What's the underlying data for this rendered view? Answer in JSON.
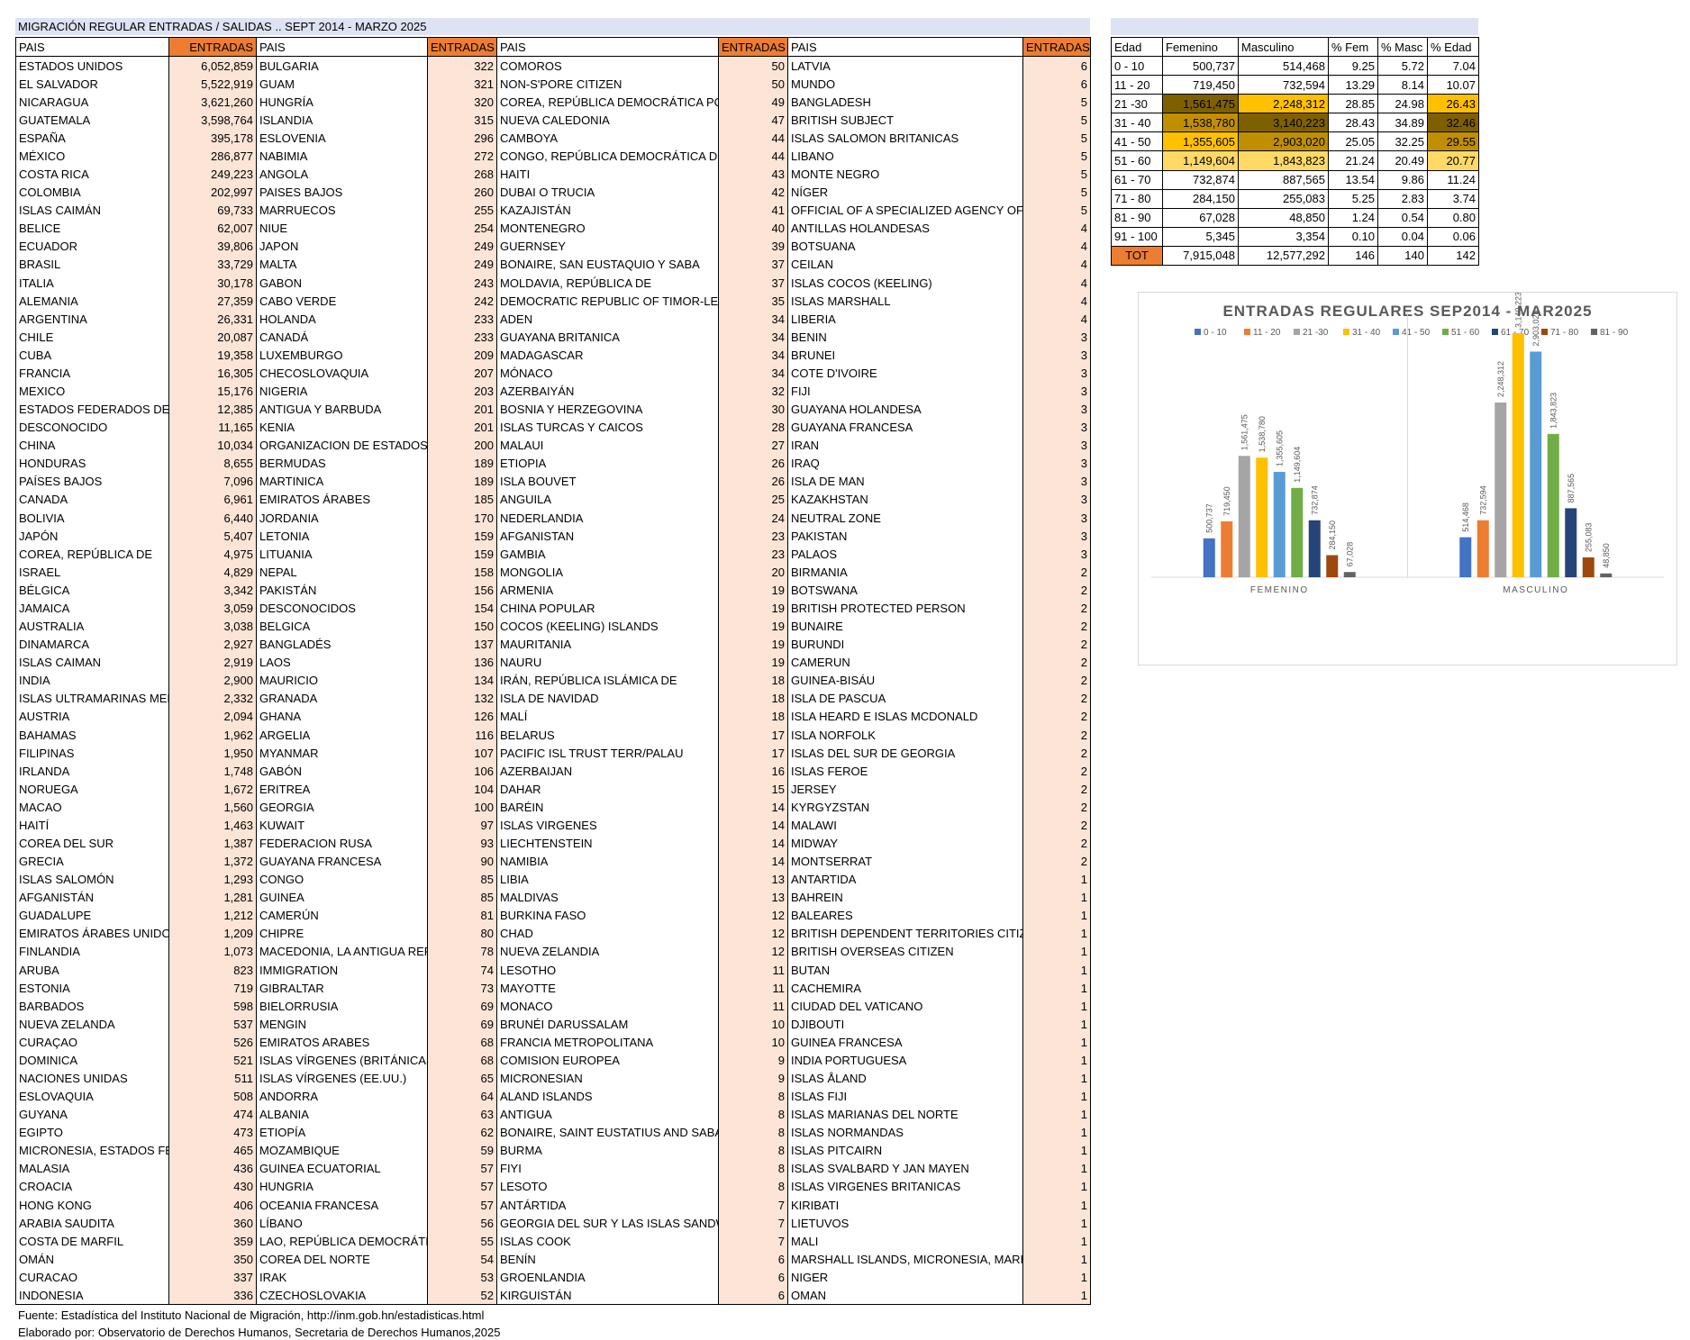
{
  "title": "MIGRACIÓN REGULAR ENTRADAS / SALIDAS .. SEPT 2014 - MARZO 2025",
  "headers": {
    "pais": "PAIS",
    "entradas": "ENTRADAS"
  },
  "columns": [
    [
      [
        "ESTADOS UNIDOS",
        "6,052,859"
      ],
      [
        "EL SALVADOR",
        "5,522,919"
      ],
      [
        "NICARAGUA",
        "3,621,260"
      ],
      [
        "GUATEMALA",
        "3,598,764"
      ],
      [
        "ESPAÑA",
        "395,178"
      ],
      [
        "MÉXICO",
        "286,877"
      ],
      [
        "COSTA RICA",
        "249,223"
      ],
      [
        "COLOMBIA",
        "202,997"
      ],
      [
        "ISLAS CAIMÁN",
        "69,733"
      ],
      [
        "BELICE",
        "62,007"
      ],
      [
        "ECUADOR",
        "39,806"
      ],
      [
        "BRASIL",
        "33,729"
      ],
      [
        "ITALIA",
        "30,178"
      ],
      [
        "ALEMANIA",
        "27,359"
      ],
      [
        "ARGENTINA",
        "26,331"
      ],
      [
        "CHILE",
        "20,087"
      ],
      [
        "CUBA",
        "19,358"
      ],
      [
        "FRANCIA",
        "16,305"
      ],
      [
        "MEXICO",
        "15,176"
      ],
      [
        "ESTADOS FEDERADOS DE MICRONESIA",
        "12,385"
      ],
      [
        "DESCONOCIDO",
        "11,165"
      ],
      [
        "CHINA",
        "10,034"
      ],
      [
        "HONDURAS",
        "8,655"
      ],
      [
        "PAÍSES BAJOS",
        "7,096"
      ],
      [
        "CANADA",
        "6,961"
      ],
      [
        "BOLIVIA",
        "6,440"
      ],
      [
        "JAPÓN",
        "5,407"
      ],
      [
        "COREA, REPÚBLICA DE",
        "4,975"
      ],
      [
        "ISRAEL",
        "4,829"
      ],
      [
        "BÉLGICA",
        "3,342"
      ],
      [
        "JAMAICA",
        "3,059"
      ],
      [
        "AUSTRALIA",
        "3,038"
      ],
      [
        "DINAMARCA",
        "2,927"
      ],
      [
        "ISLAS CAIMAN",
        "2,919"
      ],
      [
        "INDIA",
        "2,900"
      ],
      [
        "ISLAS ULTRAMARINAS MENORES",
        "2,332"
      ],
      [
        "AUSTRIA",
        "2,094"
      ],
      [
        "BAHAMAS",
        "1,962"
      ],
      [
        "FILIPINAS",
        "1,950"
      ],
      [
        "IRLANDA",
        "1,748"
      ],
      [
        "NORUEGA",
        "1,672"
      ],
      [
        "MACAO",
        "1,560"
      ],
      [
        "HAITÍ",
        "1,463"
      ],
      [
        "COREA DEL SUR",
        "1,387"
      ],
      [
        "GRECIA",
        "1,372"
      ],
      [
        "ISLAS SALOMÓN",
        "1,293"
      ],
      [
        "AFGANISTÁN",
        "1,281"
      ],
      [
        "GUADALUPE",
        "1,212"
      ],
      [
        "EMIRATOS ÁRABES UNIDOS",
        "1,209"
      ],
      [
        "FINLANDIA",
        "1,073"
      ],
      [
        "ARUBA",
        "823"
      ],
      [
        "ESTONIA",
        "719"
      ],
      [
        "BARBADOS",
        "598"
      ],
      [
        "NUEVA ZELANDA",
        "537"
      ],
      [
        "CURAÇAO",
        "526"
      ],
      [
        "DOMINICA",
        "521"
      ],
      [
        "NACIONES UNIDAS",
        "511"
      ],
      [
        "ESLOVAQUIA",
        "508"
      ],
      [
        "GUYANA",
        "474"
      ],
      [
        "EGIPTO",
        "473"
      ],
      [
        "MICRONESIA, ESTADOS FEDERADOS DE",
        "465"
      ],
      [
        "MALASIA",
        "436"
      ],
      [
        "CROACIA",
        "430"
      ],
      [
        "HONG KONG",
        "406"
      ],
      [
        "ARABIA SAUDITA",
        "360"
      ],
      [
        "COSTA DE MARFIL",
        "359"
      ],
      [
        "OMÁN",
        "350"
      ],
      [
        "CURACAO",
        "337"
      ],
      [
        "INDONESIA",
        "336"
      ]
    ],
    [
      [
        "BULGARIA",
        "322"
      ],
      [
        "GUAM",
        "321"
      ],
      [
        "HUNGRÍA",
        "320"
      ],
      [
        "ISLANDIA",
        "315"
      ],
      [
        "ESLOVENIA",
        "296"
      ],
      [
        "NABIMIA",
        "272"
      ],
      [
        "ANGOLA",
        "268"
      ],
      [
        "PAISES BAJOS",
        "260"
      ],
      [
        "MARRUECOS",
        "255"
      ],
      [
        "NIUE",
        "254"
      ],
      [
        "JAPON",
        "249"
      ],
      [
        "MALTA",
        "249"
      ],
      [
        "GABON",
        "243"
      ],
      [
        "CABO VERDE",
        "242"
      ],
      [
        "HOLANDA",
        "233"
      ],
      [
        "CANADÁ",
        "233"
      ],
      [
        "LUXEMBURGO",
        "209"
      ],
      [
        "CHECOSLOVAQUIA",
        "207"
      ],
      [
        "NIGERIA",
        "203"
      ],
      [
        "ANTIGUA Y BARBUDA",
        "201"
      ],
      [
        "KENIA",
        "201"
      ],
      [
        "ORGANIZACION DE ESTADOS AMERICANOS",
        "200"
      ],
      [
        "BERMUDAS",
        "189"
      ],
      [
        "MARTINICA",
        "189"
      ],
      [
        "EMIRATOS ÁRABES",
        "185"
      ],
      [
        "JORDANIA",
        "170"
      ],
      [
        "LETONIA",
        "159"
      ],
      [
        "LITUANIA",
        "159"
      ],
      [
        "NEPAL",
        "158"
      ],
      [
        "PAKISTÁN",
        "156"
      ],
      [
        "DESCONOCIDOS",
        "154"
      ],
      [
        "BELGICA",
        "150"
      ],
      [
        "BANGLADÉS",
        "137"
      ],
      [
        "LAOS",
        "136"
      ],
      [
        "MAURICIO",
        "134"
      ],
      [
        "GRANADA",
        "132"
      ],
      [
        "GHANA",
        "126"
      ],
      [
        "ARGELIA",
        "116"
      ],
      [
        "MYANMAR",
        "107"
      ],
      [
        "GABÓN",
        "106"
      ],
      [
        "ERITREA",
        "104"
      ],
      [
        "GEORGIA",
        "100"
      ],
      [
        "KUWAIT",
        "97"
      ],
      [
        "FEDERACION RUSA",
        "93"
      ],
      [
        "GUAYANA FRANCESA",
        "90"
      ],
      [
        "CONGO",
        "85"
      ],
      [
        "GUINEA",
        "85"
      ],
      [
        "CAMERÚN",
        "81"
      ],
      [
        "CHIPRE",
        "80"
      ],
      [
        "MACEDONIA, LA ANTIGUA REPÚBLICA",
        "78"
      ],
      [
        "IMMIGRATION",
        "74"
      ],
      [
        "GIBRALTAR",
        "73"
      ],
      [
        "BIELORRUSIA",
        "69"
      ],
      [
        "MENGIN",
        "69"
      ],
      [
        "EMIRATOS ARABES",
        "68"
      ],
      [
        "ISLAS VÍRGENES (BRITÁNICAS)",
        "68"
      ],
      [
        "ISLAS VÍRGENES (EE.UU.)",
        "65"
      ],
      [
        "ANDORRA",
        "64"
      ],
      [
        "ALBANIA",
        "63"
      ],
      [
        "ETIOPÍA",
        "62"
      ],
      [
        "MOZAMBIQUE",
        "59"
      ],
      [
        "GUINEA ECUATORIAL",
        "57"
      ],
      [
        "HUNGRIA",
        "57"
      ],
      [
        "OCEANIA FRANCESA",
        "57"
      ],
      [
        "LÍBANO",
        "56"
      ],
      [
        "LAO, REPÚBLICA DEMOCRÁTICA POPULAR",
        "55"
      ],
      [
        "COREA DEL NORTE",
        "54"
      ],
      [
        "IRAK",
        "53"
      ],
      [
        "CZECHOSLOVAKIA",
        "52"
      ]
    ],
    [
      [
        "COMOROS",
        "50"
      ],
      [
        "NON-S'PORE CITIZEN",
        "50"
      ],
      [
        "COREA, REPÚBLICA DEMOCRÁTICA POPULAR",
        "49"
      ],
      [
        "NUEVA CALEDONIA",
        "47"
      ],
      [
        "CAMBOYA",
        "44"
      ],
      [
        "CONGO, REPÚBLICA DEMOCRÁTICA DEL",
        "44"
      ],
      [
        "HAITI",
        "43"
      ],
      [
        "DUBAI O TRUCIA",
        "42"
      ],
      [
        "KAZAJISTÁN",
        "41"
      ],
      [
        "MONTENEGRO",
        "40"
      ],
      [
        "GUERNSEY",
        "39"
      ],
      [
        "BONAIRE, SAN EUSTAQUIO Y SABA",
        "37"
      ],
      [
        "MOLDAVIA, REPÚBLICA DE",
        "37"
      ],
      [
        "DEMOCRATIC REPUBLIC OF TIMOR-LESTE",
        "35"
      ],
      [
        "ADEN",
        "34"
      ],
      [
        "GUAYANA BRITANICA",
        "34"
      ],
      [
        "MADAGASCAR",
        "34"
      ],
      [
        "MÓNACO",
        "34"
      ],
      [
        "AZERBAIYÁN",
        "32"
      ],
      [
        "BOSNIA Y HERZEGOVINA",
        "30"
      ],
      [
        "ISLAS TURCAS Y CAICOS",
        "28"
      ],
      [
        "MALAUI",
        "27"
      ],
      [
        "ETIOPIA",
        "26"
      ],
      [
        "ISLA BOUVET",
        "26"
      ],
      [
        "ANGUILA",
        "25"
      ],
      [
        "NEDERLANDIA",
        "24"
      ],
      [
        "AFGANISTAN",
        "23"
      ],
      [
        "GAMBIA",
        "23"
      ],
      [
        "MONGOLIA",
        "20"
      ],
      [
        "ARMENIA",
        "19"
      ],
      [
        "CHINA POPULAR",
        "19"
      ],
      [
        "COCOS (KEELING) ISLANDS",
        "19"
      ],
      [
        "MAURITANIA",
        "19"
      ],
      [
        "NAURU",
        "19"
      ],
      [
        "IRÁN, REPÚBLICA ISLÁMICA DE",
        "18"
      ],
      [
        "ISLA DE NAVIDAD",
        "18"
      ],
      [
        "MALÍ",
        "18"
      ],
      [
        "BELARUS",
        "17"
      ],
      [
        "PACIFIC ISL TRUST TERR/PALAU",
        "17"
      ],
      [
        "AZERBAIJAN",
        "16"
      ],
      [
        "DAHAR",
        "15"
      ],
      [
        "BARÉIN",
        "14"
      ],
      [
        "ISLAS VIRGENES",
        "14"
      ],
      [
        "LIECHTENSTEIN",
        "14"
      ],
      [
        "NAMIBIA",
        "14"
      ],
      [
        "LIBIA",
        "13"
      ],
      [
        "MALDIVAS",
        "13"
      ],
      [
        "BURKINA FASO",
        "12"
      ],
      [
        "CHAD",
        "12"
      ],
      [
        "NUEVA ZELANDIA",
        "12"
      ],
      [
        "LESOTHO",
        "11"
      ],
      [
        "MAYOTTE",
        "11"
      ],
      [
        "MONACO",
        "11"
      ],
      [
        "BRUNÉI DARUSSALAM",
        "10"
      ],
      [
        "FRANCIA METROPOLITANA",
        "10"
      ],
      [
        "COMISION EUROPEA",
        "9"
      ],
      [
        "MICRONESIAN",
        "9"
      ],
      [
        "ALAND ISLANDS",
        "8"
      ],
      [
        "ANTIGUA",
        "8"
      ],
      [
        "BONAIRE, SAINT EUSTATIUS AND SABA",
        "8"
      ],
      [
        "BURMA",
        "8"
      ],
      [
        "FIYI",
        "8"
      ],
      [
        "LESOTO",
        "8"
      ],
      [
        "ANTÁRTIDA",
        "7"
      ],
      [
        "GEORGIA DEL SUR Y LAS ISLAS SANDWICH DEL SUR",
        "7"
      ],
      [
        "ISLAS COOK",
        "7"
      ],
      [
        "BENÍN",
        "6"
      ],
      [
        "GROENLANDIA",
        "6"
      ],
      [
        "KIRGUISTÁN",
        "6"
      ]
    ],
    [
      [
        "LATVIA",
        "6"
      ],
      [
        "MUNDO",
        "6"
      ],
      [
        "BANGLADESH",
        "5"
      ],
      [
        "BRITISH SUBJECT",
        "5"
      ],
      [
        "ISLAS SALOMON BRITANICAS",
        "5"
      ],
      [
        "LIBANO",
        "5"
      ],
      [
        "MONTE NEGRO",
        "5"
      ],
      [
        "NÍGER",
        "5"
      ],
      [
        "OFFICIAL OF A SPECIALIZED AGENCY OF THE UNITED NATIONS",
        "5"
      ],
      [
        "ANTILLAS HOLANDESAS",
        "4"
      ],
      [
        "BOTSUANA",
        "4"
      ],
      [
        "CEILAN",
        "4"
      ],
      [
        "ISLAS COCOS (KEELING)",
        "4"
      ],
      [
        "ISLAS MARSHALL",
        "4"
      ],
      [
        "LIBERIA",
        "4"
      ],
      [
        "BENIN",
        "3"
      ],
      [
        "BRUNEI",
        "3"
      ],
      [
        "COTE D'IVOIRE",
        "3"
      ],
      [
        "FIJI",
        "3"
      ],
      [
        "GUAYANA HOLANDESA",
        "3"
      ],
      [
        "GUAYANA FRANCESA",
        "3"
      ],
      [
        "IRAN",
        "3"
      ],
      [
        "IRAQ",
        "3"
      ],
      [
        "ISLA DE MAN",
        "3"
      ],
      [
        "KAZAKHSTAN",
        "3"
      ],
      [
        "NEUTRAL ZONE",
        "3"
      ],
      [
        "PAKISTAN",
        "3"
      ],
      [
        "PALAOS",
        "3"
      ],
      [
        "BIRMANIA",
        "2"
      ],
      [
        "BOTSWANA",
        "2"
      ],
      [
        "BRITISH PROTECTED PERSON",
        "2"
      ],
      [
        "BUNAIRE",
        "2"
      ],
      [
        "BURUNDI",
        "2"
      ],
      [
        "CAMERUN",
        "2"
      ],
      [
        "GUINEA-BISÁU",
        "2"
      ],
      [
        "ISLA DE PASCUA",
        "2"
      ],
      [
        "ISLA HEARD E ISLAS MCDONALD",
        "2"
      ],
      [
        "ISLA NORFOLK",
        "2"
      ],
      [
        "ISLAS DEL SUR DE GEORGIA",
        "2"
      ],
      [
        "ISLAS FEROE",
        "2"
      ],
      [
        "JERSEY",
        "2"
      ],
      [
        "KYRGYZSTAN",
        "2"
      ],
      [
        "MALAWI",
        "2"
      ],
      [
        "MIDWAY",
        "2"
      ],
      [
        "MONTSERRAT",
        "2"
      ],
      [
        "ANTARTIDA",
        "1"
      ],
      [
        "BAHREIN",
        "1"
      ],
      [
        "BALEARES",
        "1"
      ],
      [
        "BRITISH DEPENDENT TERRITORIES CITIZEN",
        "1"
      ],
      [
        "BRITISH OVERSEAS CITIZEN",
        "1"
      ],
      [
        "BUTAN",
        "1"
      ],
      [
        "CACHEMIRA",
        "1"
      ],
      [
        "CIUDAD DEL VATICANO",
        "1"
      ],
      [
        "DJIBOUTI",
        "1"
      ],
      [
        "GUINEA FRANCESA",
        "1"
      ],
      [
        "INDIA PORTUGUESA",
        "1"
      ],
      [
        "ISLAS ÅLAND",
        "1"
      ],
      [
        "ISLAS FIJI",
        "1"
      ],
      [
        "ISLAS MARIANAS DEL NORTE",
        "1"
      ],
      [
        "ISLAS NORMANDAS",
        "1"
      ],
      [
        "ISLAS PITCAIRN",
        "1"
      ],
      [
        "ISLAS SVALBARD Y JAN MAYEN",
        "1"
      ],
      [
        "ISLAS VIRGENES BRITANICAS",
        "1"
      ],
      [
        "KIRIBATI",
        "1"
      ],
      [
        "LIETUVOS",
        "1"
      ],
      [
        "MALI",
        "1"
      ],
      [
        "MARSHALL ISLANDS, MICRONESIA, MARIANA ISLANDS",
        "1"
      ],
      [
        "NIGER",
        "1"
      ],
      [
        "OMAN",
        "1"
      ]
    ]
  ],
  "age_table": {
    "headers": [
      "Edad",
      "Femenino",
      "Masculino",
      "% Fem",
      "% Masc",
      "% Edad"
    ],
    "rows": [
      {
        "edad": "0 - 10",
        "fem": "500,737",
        "masc": "514,468",
        "pf": "9.25",
        "pm": "5.72",
        "pe": "7.04"
      },
      {
        "edad": "11 - 20",
        "fem": "719,450",
        "masc": "732,594",
        "pf": "13.29",
        "pm": "8.14",
        "pe": "10.07"
      },
      {
        "edad": "21 -30",
        "fem": "1,561,475",
        "masc": "2,248,312",
        "pf": "28.85",
        "pm": "24.98",
        "pe": "26.43"
      },
      {
        "edad": "31 - 40",
        "fem": "1,538,780",
        "masc": "3,140,223",
        "pf": "28.43",
        "pm": "34.89",
        "pe": "32.46"
      },
      {
        "edad": "41 - 50",
        "fem": "1,355,605",
        "masc": "2,903,020",
        "pf": "25.05",
        "pm": "32.25",
        "pe": "29.55"
      },
      {
        "edad": "51 - 60",
        "fem": "1,149,604",
        "masc": "1,843,823",
        "pf": "21.24",
        "pm": "20.49",
        "pe": "20.77"
      },
      {
        "edad": "61 - 70",
        "fem": "732,874",
        "masc": "887,565",
        "pf": "13.54",
        "pm": "9.86",
        "pe": "11.24"
      },
      {
        "edad": "71 - 80",
        "fem": "284,150",
        "masc": "255,083",
        "pf": "5.25",
        "pm": "2.83",
        "pe": "3.74"
      },
      {
        "edad": "81 - 90",
        "fem": "67,028",
        "masc": "48,850",
        "pf": "1.24",
        "pm": "0.54",
        "pe": "0.80"
      },
      {
        "edad": "91 - 100",
        "fem": "5,345",
        "masc": "3,354",
        "pf": "0.10",
        "pm": "0.04",
        "pe": "0.06"
      }
    ],
    "total": {
      "edad": "TOT",
      "fem": "7,915,048",
      "masc": "12,577,292",
      "pf": "146",
      "pm": "140",
      "pe": "142"
    },
    "highlight": {
      "fem": {
        "2": "#7f6000",
        "3": "#bf8f00",
        "4": "#ffc000",
        "5": "#ffd966"
      },
      "masc": {
        "2": "#ffc000",
        "3": "#7f6000",
        "4": "#bf8f00",
        "5": "#ffd966"
      },
      "pe": {
        "2": "#ffc000",
        "3": "#7f6000",
        "4": "#bf8f00",
        "5": "#ffd966"
      }
    }
  },
  "chart_data": {
    "type": "bar",
    "title": "ENTRADAS REGULARES SEP2014 - MAR2025",
    "categories": [
      "FEMENINO",
      "MASCULINO"
    ],
    "legend_position": "top",
    "series": [
      {
        "name": "0 - 10",
        "color": "#4472c4",
        "values": [
          500737,
          514468
        ],
        "labels": [
          "500,737",
          "514,468"
        ]
      },
      {
        "name": "11 - 20",
        "color": "#ed7d31",
        "values": [
          719450,
          732594
        ],
        "labels": [
          "719,450",
          "732,594"
        ]
      },
      {
        "name": "21 -30",
        "color": "#a5a5a5",
        "values": [
          1561475,
          2248312
        ],
        "labels": [
          "1,561,475",
          "2,248,312"
        ]
      },
      {
        "name": "31 - 40",
        "color": "#ffc000",
        "values": [
          1538780,
          3140223
        ],
        "labels": [
          "1,538,780",
          "3,140,223"
        ]
      },
      {
        "name": "41 - 50",
        "color": "#5b9bd5",
        "values": [
          1355605,
          2903020
        ],
        "labels": [
          "1,355,605",
          "2,903,020"
        ]
      },
      {
        "name": "51 - 60",
        "color": "#70ad47",
        "values": [
          1149604,
          1843823
        ],
        "labels": [
          "1,149,604",
          "1,843,823"
        ]
      },
      {
        "name": "61 - 70",
        "color": "#264478",
        "values": [
          732874,
          887565
        ],
        "labels": [
          "732,874",
          "887,565"
        ]
      },
      {
        "name": "71 - 80",
        "color": "#9e480e",
        "values": [
          284150,
          255083
        ],
        "labels": [
          "284,150",
          "255,083"
        ]
      },
      {
        "name": "81 - 90",
        "color": "#636363",
        "values": [
          67028,
          48850
        ],
        "labels": [
          "67,028",
          "48,850"
        ]
      }
    ],
    "ylim": [
      0,
      3140223
    ]
  },
  "footer": {
    "source": "Fuente: Estadística del Instituto Nacional de Migración, http://inm.gob.hn/estadisticas.html",
    "author": "Elaborado por: Observatorio de Derechos Humanos, Secretaria de Derechos Humanos,2025"
  }
}
